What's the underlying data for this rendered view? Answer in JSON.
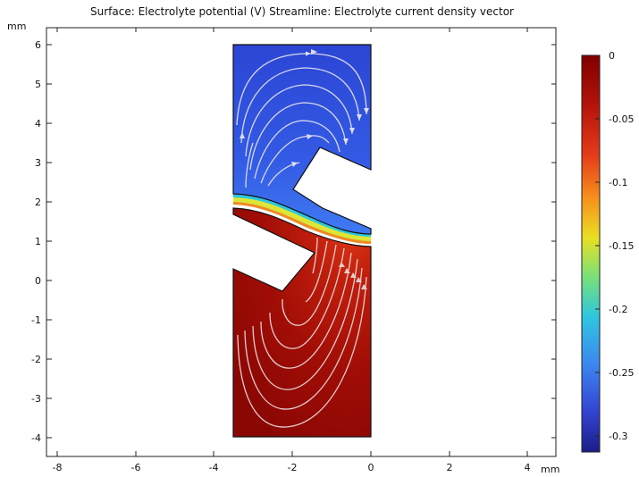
{
  "title": "Surface: Electrolyte potential (V)  Streamline: Electrolyte current density vector",
  "x_unit": "mm",
  "y_unit": "mm",
  "x_ticks": [
    "-8",
    "-6",
    "-4",
    "-2",
    "0",
    "2",
    "4"
  ],
  "y_ticks": [
    "6",
    "5",
    "4",
    "3",
    "2",
    "1",
    "0",
    "-1",
    "-2",
    "-3",
    "-4"
  ],
  "colorbar": {
    "labels": [
      "0",
      "-0.05",
      "-0.1",
      "-0.15",
      "-0.2",
      "-0.25",
      "-0.3"
    ],
    "colormap": [
      "#7f0000",
      "#c01a0a",
      "#ef4a1c",
      "#f7a11b",
      "#e8e82a",
      "#7fe06a",
      "#2ec6e0",
      "#3f82f0",
      "#3443d0",
      "#1e1f8a"
    ]
  },
  "colors": {
    "upper_region": "#3563e8",
    "lower_region": "#a30e06",
    "streamline": "#dcdcf0"
  }
}
